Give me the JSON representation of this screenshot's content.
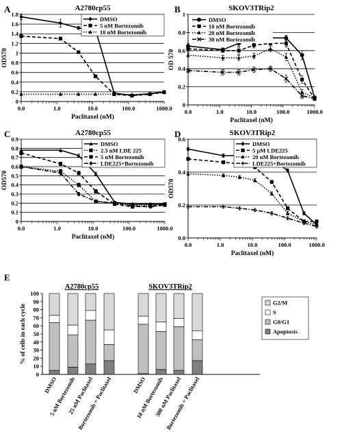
{
  "chart_data": [
    {
      "panel": "A",
      "type": "line",
      "title": "A2780cp55",
      "xlabel": "Paclitaxel (nM)",
      "ylabel": "OD570",
      "x_scale": "log",
      "xlim": [
        0.1,
        1000
      ],
      "x_tick_labels": [
        "0.0",
        "1.0",
        "10.0",
        "100.0",
        "1000.0"
      ],
      "ylim": [
        0,
        1.8
      ],
      "y_ticks": [
        0,
        0.2,
        0.4,
        0.6,
        0.8,
        1.0,
        1.2,
        1.4,
        1.6,
        1.8
      ],
      "y_tick_labels": [
        "0",
        "0.2",
        "0.4",
        "0.6",
        "0.8",
        "1",
        "1.2",
        "1.4",
        "1.6",
        "1.8"
      ],
      "grid": "horizontal",
      "legend_position": "top-right",
      "x": [
        0.1,
        1.25,
        4,
        12,
        40,
        125,
        400,
        1000
      ],
      "series": [
        {
          "name": "DMSO",
          "style": "solid",
          "marker": "diamond",
          "values": [
            1.75,
            1.62,
            1.52,
            1.48,
            0.17,
            0.13,
            0.16,
            0.2
          ],
          "errors": [
            0.06,
            0.08,
            0.03,
            0.02,
            0.02,
            0.01,
            0.02,
            0.02
          ]
        },
        {
          "name": "5 nM Bortezomib",
          "style": "dashed",
          "marker": "square",
          "values": [
            1.35,
            1.3,
            1.02,
            0.52,
            0.15,
            0.12,
            0.15,
            0.19
          ],
          "errors": [
            0.03,
            0.03,
            0.03,
            0.03,
            0.02,
            0.01,
            0.01,
            0.02
          ]
        },
        {
          "name": "10 nM Bortezomib",
          "style": "dotted",
          "marker": "triangle",
          "values": [
            0.15,
            0.15,
            0.15,
            0.15,
            0.15,
            0.14,
            0.16,
            0.19
          ],
          "errors": [
            0.01,
            0.01,
            0.01,
            0.01,
            0.01,
            0.01,
            0.01,
            0.01
          ]
        }
      ]
    },
    {
      "panel": "B",
      "type": "line",
      "title": "SKOV3TRip2",
      "xlabel": "Paclitaxel (nM)",
      "ylabel": "OD 570",
      "x_scale": "log",
      "xlim": [
        0.1,
        1000
      ],
      "x_tick_labels": [
        "0.0",
        "1.0",
        "10.0",
        "100.0",
        "1000.0"
      ],
      "ylim": [
        0,
        1
      ],
      "y_ticks": [
        0,
        0.2,
        0.4,
        0.6,
        0.8,
        1.0
      ],
      "y_tick_labels": [
        "0",
        "0.2",
        "0.4",
        "0.6",
        "0.8",
        "1"
      ],
      "grid": "horizontal",
      "legend_position": "top-left",
      "x": [
        0.1,
        1.25,
        4,
        12,
        40,
        125,
        400,
        1000
      ],
      "series": [
        {
          "name": "DMSO",
          "style": "solid",
          "marker": "circle",
          "values": [
            0.65,
            0.61,
            0.68,
            0.71,
            0.74,
            0.74,
            0.55,
            0.08
          ],
          "errors": [
            0.03,
            0.02,
            0.03,
            0.03,
            0.02,
            0.03,
            0.05,
            0.02
          ]
        },
        {
          "name": "10 nM Bortezomib",
          "style": "dashed",
          "marker": "square",
          "values": [
            0.62,
            0.6,
            0.6,
            0.66,
            0.68,
            0.68,
            0.28,
            0.07
          ],
          "errors": [
            0.03,
            0.02,
            0.04,
            0.03,
            0.03,
            0.04,
            0.04,
            0.02
          ]
        },
        {
          "name": "20 nM Bortezomib",
          "style": "dotted",
          "marker": "triangle",
          "values": [
            0.55,
            0.52,
            0.52,
            0.54,
            0.62,
            0.53,
            0.14,
            0.08
          ],
          "errors": [
            0.02,
            0.03,
            0.03,
            0.03,
            0.03,
            0.04,
            0.03,
            0.02
          ]
        },
        {
          "name": "30 nM Bortezomib",
          "style": "dashdot",
          "marker": "x",
          "values": [
            0.38,
            0.36,
            0.36,
            0.39,
            0.4,
            0.29,
            0.1,
            0.07
          ],
          "errors": [
            0.02,
            0.03,
            0.03,
            0.03,
            0.03,
            0.04,
            0.03,
            0.02
          ]
        }
      ]
    },
    {
      "panel": "C",
      "type": "line",
      "title": "A2780cp55",
      "xlabel": "Paclitaxel (nM)",
      "ylabel": "OD570",
      "x_scale": "log",
      "xlim": [
        0.1,
        1000
      ],
      "x_tick_labels": [
        "0.0",
        "1.0",
        "10.0",
        "100.0",
        "1000.0"
      ],
      "ylim": [
        0,
        0.9
      ],
      "y_ticks": [
        0,
        0.1,
        0.2,
        0.3,
        0.4,
        0.5,
        0.6,
        0.7,
        0.8,
        0.9
      ],
      "y_tick_labels": [
        "0",
        "0.1",
        "0.2",
        "0.3",
        "0.4",
        "0.5",
        "0.6",
        "0.7",
        "0.8",
        "0.9"
      ],
      "grid": "horizontal",
      "legend_position": "top-right",
      "x": [
        0.1,
        1.25,
        4,
        12,
        40,
        125,
        400,
        1000
      ],
      "series": [
        {
          "name": "DMSO",
          "style": "solid",
          "marker": "triangle",
          "values": [
            0.78,
            0.78,
            0.72,
            0.52,
            0.21,
            0.19,
            0.19,
            0.19
          ],
          "errors": [
            0.02,
            0.02,
            0.02,
            0.02,
            0.01,
            0.01,
            0.01,
            0.01
          ]
        },
        {
          "name": "2.5 nM LDE 225",
          "style": "dotted",
          "marker": "square",
          "values": [
            0.6,
            0.55,
            0.4,
            0.22,
            0.2,
            0.18,
            0.18,
            0.19
          ],
          "errors": [
            0.02,
            0.02,
            0.02,
            0.01,
            0.01,
            0.01,
            0.01,
            0.01
          ]
        },
        {
          "name": "5 nM Bortezomib",
          "style": "dashed",
          "marker": "square",
          "values": [
            0.75,
            0.63,
            0.53,
            0.33,
            0.19,
            0.16,
            0.17,
            0.18
          ],
          "errors": [
            0.02,
            0.02,
            0.02,
            0.02,
            0.01,
            0.01,
            0.01,
            0.01
          ]
        },
        {
          "name": "LDE225+Bortezomib",
          "style": "dashdot",
          "marker": "diamond",
          "values": [
            0.6,
            0.53,
            0.3,
            0.22,
            0.2,
            0.17,
            0.16,
            0.18
          ],
          "errors": [
            0.02,
            0.02,
            0.02,
            0.01,
            0.01,
            0.01,
            0.01,
            0.01
          ]
        }
      ]
    },
    {
      "panel": "D",
      "type": "line",
      "title": "SKOV3TRip2",
      "xlabel": "Paclitaxel (nM)",
      "ylabel": "OD570",
      "x_scale": "log",
      "xlim": [
        0.1,
        1000
      ],
      "x_tick_labels": [
        "0.0",
        "1.0",
        "10.0",
        "100.0",
        "1000.0"
      ],
      "ylim": [
        0,
        0.6
      ],
      "y_ticks": [
        0,
        0.2,
        0.4,
        0.6
      ],
      "y_tick_labels": [
        "0.0",
        "0.2",
        "0.4",
        "0.6"
      ],
      "grid": "horizontal",
      "legend_position": "top-right",
      "x": [
        0.1,
        1.25,
        4,
        12,
        40,
        125,
        400,
        1000
      ],
      "series": [
        {
          "name": "DMSO",
          "style": "solid",
          "marker": "diamond",
          "values": [
            0.54,
            0.5,
            0.5,
            0.48,
            0.48,
            0.41,
            0.15,
            0.08
          ],
          "errors": [
            0.01,
            0.01,
            0.01,
            0.01,
            0.01,
            0.01,
            0.01,
            0.01
          ]
        },
        {
          "name": "5 µM LDE225",
          "style": "dashed",
          "marker": "square",
          "values": [
            0.48,
            0.46,
            0.45,
            0.43,
            0.34,
            0.18,
            0.1,
            0.1
          ],
          "errors": [
            0.01,
            0.01,
            0.01,
            0.01,
            0.01,
            0.01,
            0.01,
            0.01
          ]
        },
        {
          "name": "20 nM Bortezomib",
          "style": "dotted",
          "marker": "triangle",
          "values": [
            0.39,
            0.38,
            0.37,
            0.35,
            0.27,
            0.15,
            0.1,
            0.08
          ],
          "errors": [
            0.01,
            0.01,
            0.01,
            0.01,
            0.01,
            0.01,
            0.01,
            0.01
          ]
        },
        {
          "name": "LDE225+Bortezomib",
          "style": "dashdot",
          "marker": "cross",
          "values": [
            0.19,
            0.19,
            0.18,
            0.17,
            0.15,
            0.12,
            0.09,
            0.07
          ],
          "errors": [
            0.01,
            0.01,
            0.01,
            0.01,
            0.01,
            0.01,
            0.01,
            0.01
          ]
        }
      ]
    },
    {
      "panel": "E",
      "type": "bar",
      "stacked": true,
      "ylabel": "% of cells in each cycle",
      "ylim": [
        0,
        100
      ],
      "y_ticks": [
        0,
        10,
        20,
        30,
        40,
        50,
        60,
        70,
        80,
        90,
        100
      ],
      "y_tick_labels": [
        "0",
        "10",
        "20",
        "30",
        "40",
        "50",
        "60",
        "70",
        "80",
        "90",
        "100"
      ],
      "group_labels": [
        "A2780cp55",
        "SKOV3TRip2"
      ],
      "categories": [
        "DMSO",
        "5 nM Bortezomib",
        "25 nM Paclitaxel",
        "Bortezomib + Paclitaxel",
        "DMSO",
        "10 nM Bortezomib",
        "300 nM Paclitaxel",
        "Bortezomib + Paclitaxel"
      ],
      "legend_position": "right",
      "series": [
        {
          "name": "Apoptosis",
          "color": "#808080",
          "values": [
            5,
            9,
            13,
            17,
            1,
            6,
            5,
            17
          ]
        },
        {
          "name": "G0/G1",
          "color": "#c0c0c0",
          "values": [
            59,
            40,
            54,
            20,
            61,
            47,
            54,
            26
          ]
        },
        {
          "name": "S",
          "color": "#ffffff",
          "values": [
            9,
            12,
            12,
            18,
            10,
            12,
            10,
            11
          ]
        },
        {
          "name": "G2/M",
          "color": "#d9d9d9",
          "values": [
            27,
            39,
            21,
            45,
            28,
            35,
            31,
            46
          ]
        }
      ],
      "legend_order": [
        "G2/M",
        "S",
        "G0/G1",
        "Apoptosis"
      ]
    }
  ]
}
